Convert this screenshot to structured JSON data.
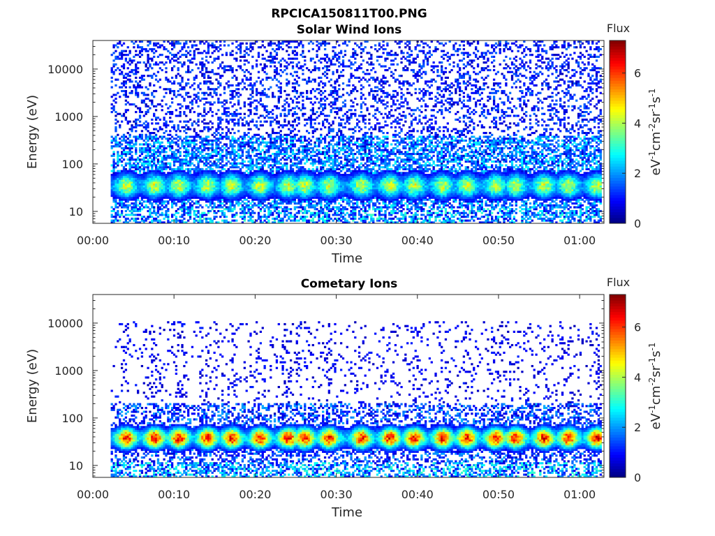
{
  "figure_title": "RPCICA150811T00.PNG",
  "chart_data": [
    {
      "type": "heatmap",
      "title": "Solar Wind Ions",
      "xlabel": "Time",
      "ylabel": "Energy (eV)",
      "y_scale": "log",
      "xlim_minutes": [
        0,
        63
      ],
      "ylim": [
        5.6,
        40000
      ],
      "x_ticks": [
        "00:00",
        "00:10",
        "00:20",
        "00:30",
        "00:40",
        "00:50",
        "01:00"
      ],
      "y_ticks": [
        "10",
        "100",
        "1000",
        "10000"
      ],
      "data_start_minute": 2.2,
      "colorbar": {
        "title": "Flux",
        "label": "eV-1cm-2sr-1s-1",
        "ticks": [
          "0",
          "2",
          "4",
          "6"
        ],
        "range": [
          0,
          7.3
        ],
        "colormap": "jet"
      },
      "peak_times_minutes": [
        4,
        7.5,
        10.5,
        14,
        17,
        20.5,
        24,
        26,
        29,
        33,
        36.5,
        39.5,
        43,
        46,
        49.5,
        52,
        55.5,
        58.5,
        62
      ],
      "typical_peak_energy_eV": 35,
      "typical_peak_flux": 4.8
    },
    {
      "type": "heatmap",
      "title": "Cometary Ions",
      "xlabel": "Time",
      "ylabel": "Energy (eV)",
      "y_scale": "log",
      "xlim_minutes": [
        0,
        63
      ],
      "ylim": [
        5.6,
        40000
      ],
      "x_ticks": [
        "00:00",
        "00:10",
        "00:20",
        "00:30",
        "00:40",
        "00:50",
        "01:00"
      ],
      "y_ticks": [
        "10",
        "100",
        "1000",
        "10000"
      ],
      "data_start_minute": 2.2,
      "colorbar": {
        "title": "Flux",
        "label": "eV-1cm-2sr-1s-1",
        "ticks": [
          "0",
          "2",
          "4",
          "6"
        ],
        "range": [
          0,
          7.3
        ],
        "colormap": "jet"
      },
      "peak_times_minutes": [
        4,
        7.5,
        10.5,
        14,
        17,
        20.5,
        24,
        26,
        29,
        33,
        36.5,
        39.5,
        43,
        46,
        49.5,
        52,
        55.5,
        58.5,
        62
      ],
      "typical_peak_energy_eV": 38,
      "typical_peak_flux": 6.9
    }
  ]
}
